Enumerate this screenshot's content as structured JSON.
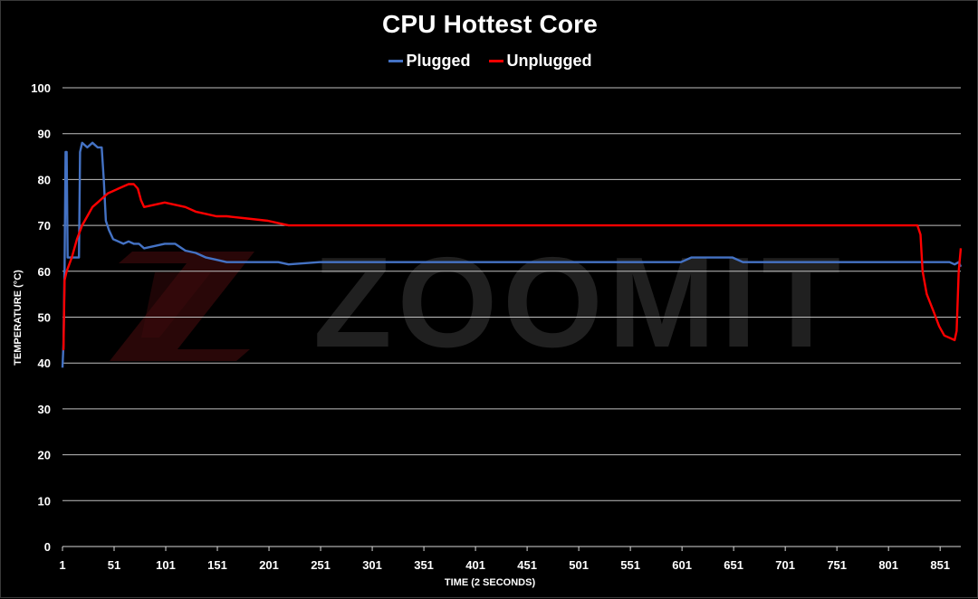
{
  "chart_data": {
    "type": "line",
    "title": "CPU Hottest Core",
    "xlabel": "TIME (2 SECONDS)",
    "ylabel": "TEMPERATURE (°C)",
    "xlim": [
      1,
      871
    ],
    "ylim": [
      0,
      100
    ],
    "yticks": [
      0,
      10,
      20,
      30,
      40,
      50,
      60,
      70,
      80,
      90,
      100
    ],
    "xticks": [
      1,
      51,
      101,
      151,
      201,
      251,
      301,
      351,
      401,
      451,
      501,
      551,
      601,
      651,
      701,
      751,
      801,
      851
    ],
    "grid": true,
    "legend_position": "top",
    "watermark": "ZOOMIT",
    "series": [
      {
        "name": "Plugged",
        "color": "#4472C4",
        "points": [
          [
            1,
            39
          ],
          [
            2,
            44
          ],
          [
            3,
            60
          ],
          [
            4,
            86
          ],
          [
            5,
            86
          ],
          [
            6,
            63
          ],
          [
            8,
            63
          ],
          [
            17,
            63
          ],
          [
            18,
            86
          ],
          [
            20,
            88
          ],
          [
            25,
            87
          ],
          [
            30,
            88
          ],
          [
            35,
            87
          ],
          [
            39,
            87
          ],
          [
            41,
            80
          ],
          [
            43,
            71
          ],
          [
            46,
            69
          ],
          [
            50,
            67
          ],
          [
            55,
            66.5
          ],
          [
            60,
            66
          ],
          [
            65,
            66.5
          ],
          [
            70,
            66
          ],
          [
            75,
            66
          ],
          [
            80,
            65
          ],
          [
            90,
            65.5
          ],
          [
            100,
            66
          ],
          [
            110,
            66
          ],
          [
            120,
            64.5
          ],
          [
            130,
            64
          ],
          [
            140,
            63
          ],
          [
            150,
            62.5
          ],
          [
            160,
            62
          ],
          [
            170,
            62
          ],
          [
            180,
            62
          ],
          [
            190,
            62
          ],
          [
            200,
            62
          ],
          [
            210,
            62
          ],
          [
            220,
            61.5
          ],
          [
            250,
            62
          ],
          [
            300,
            62
          ],
          [
            350,
            62
          ],
          [
            400,
            62
          ],
          [
            450,
            62
          ],
          [
            500,
            62
          ],
          [
            550,
            62
          ],
          [
            600,
            62
          ],
          [
            610,
            63
          ],
          [
            650,
            63
          ],
          [
            660,
            62
          ],
          [
            700,
            62
          ],
          [
            750,
            62
          ],
          [
            800,
            62
          ],
          [
            830,
            62
          ],
          [
            850,
            62
          ],
          [
            860,
            62
          ],
          [
            865,
            61.5
          ],
          [
            869,
            62
          ],
          [
            871,
            61
          ]
        ]
      },
      {
        "name": "Unplugged",
        "color": "#FF0000",
        "points": [
          [
            1,
            43
          ],
          [
            2,
            43
          ],
          [
            3,
            58
          ],
          [
            5,
            60
          ],
          [
            10,
            63
          ],
          [
            15,
            67
          ],
          [
            20,
            70
          ],
          [
            25,
            72
          ],
          [
            30,
            74
          ],
          [
            35,
            75
          ],
          [
            40,
            76
          ],
          [
            45,
            77
          ],
          [
            50,
            77.5
          ],
          [
            55,
            78
          ],
          [
            60,
            78.5
          ],
          [
            65,
            79
          ],
          [
            70,
            79
          ],
          [
            74,
            78
          ],
          [
            77,
            75.5
          ],
          [
            80,
            74
          ],
          [
            90,
            74.5
          ],
          [
            100,
            75
          ],
          [
            110,
            74.5
          ],
          [
            120,
            74
          ],
          [
            130,
            73
          ],
          [
            140,
            72.5
          ],
          [
            150,
            72
          ],
          [
            160,
            72
          ],
          [
            180,
            71.5
          ],
          [
            200,
            71
          ],
          [
            210,
            70.5
          ],
          [
            220,
            70
          ],
          [
            250,
            70
          ],
          [
            300,
            70
          ],
          [
            350,
            70
          ],
          [
            400,
            70
          ],
          [
            450,
            70
          ],
          [
            500,
            70
          ],
          [
            550,
            70
          ],
          [
            600,
            70
          ],
          [
            650,
            70
          ],
          [
            700,
            70
          ],
          [
            750,
            70
          ],
          [
            800,
            70
          ],
          [
            829,
            70
          ],
          [
            832,
            68
          ],
          [
            834,
            60
          ],
          [
            838,
            55
          ],
          [
            845,
            51
          ],
          [
            850,
            48
          ],
          [
            855,
            46
          ],
          [
            860,
            45.5
          ],
          [
            865,
            45
          ],
          [
            867,
            47
          ],
          [
            869,
            60
          ],
          [
            871,
            65
          ]
        ]
      }
    ]
  }
}
